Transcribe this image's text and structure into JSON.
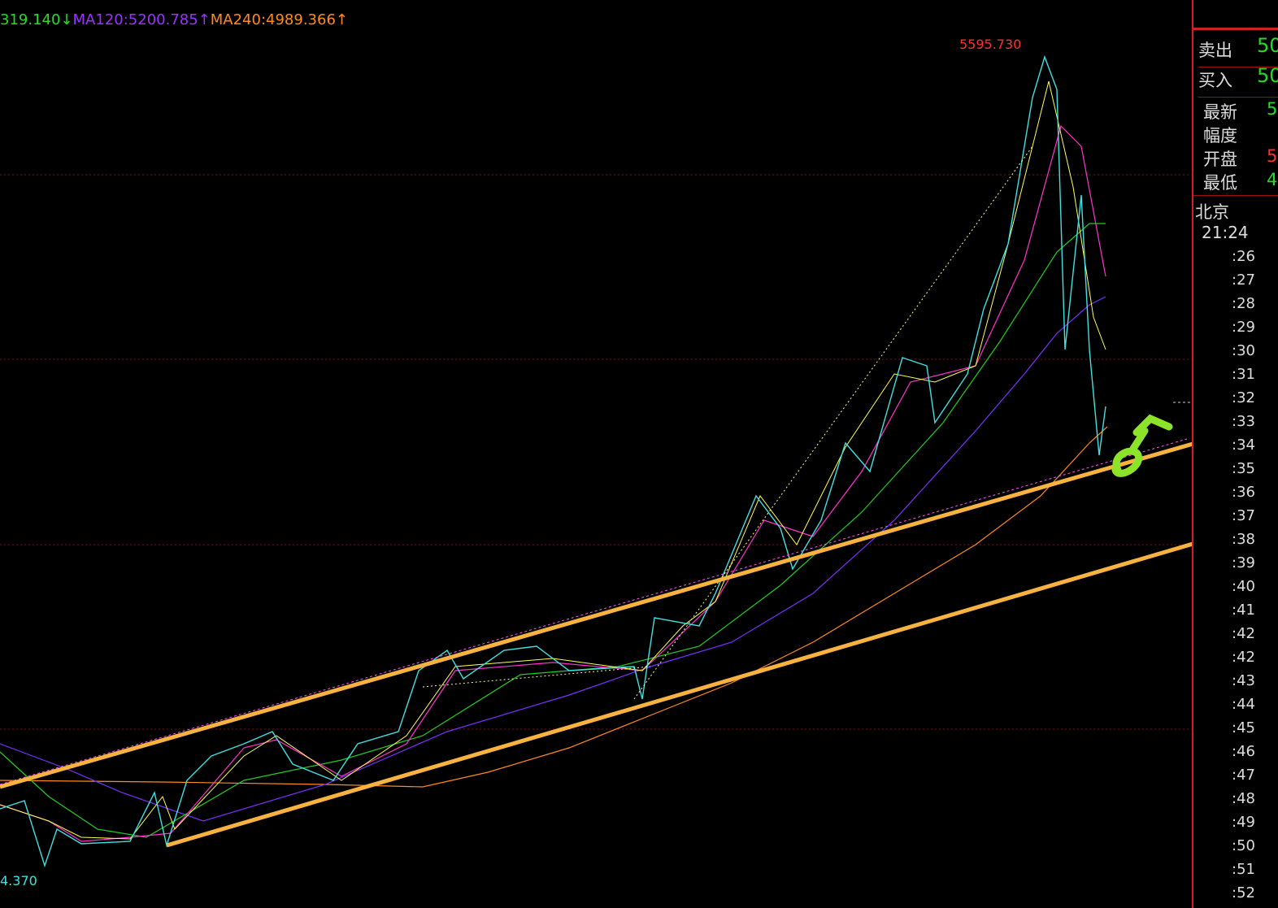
{
  "header": {
    "ma_labels": [
      {
        "text": "319.140↓",
        "color": "#22dd22"
      },
      {
        "text": "MA120:5200.785↑",
        "color": "#9933ff"
      },
      {
        "text": "MA240:4989.366↑",
        "color": "#ff8a1e"
      }
    ]
  },
  "annotations": {
    "high": "5595.730",
    "low": "4.370"
  },
  "side_panel": {
    "quotes": [
      {
        "label": "卖出",
        "value": "50"
      },
      {
        "label": "买入",
        "value": "50"
      }
    ],
    "stats": [
      {
        "label": "最新",
        "value": "5"
      },
      {
        "label": "幅度",
        "value": ""
      },
      {
        "label": "开盘",
        "value": "5"
      },
      {
        "label": "最低",
        "value": "4"
      }
    ],
    "city": "北京",
    "time": "21:24",
    "ticks": [
      ":26",
      ":27",
      ":28",
      ":29",
      ":30",
      ":31",
      ":32",
      ":33",
      ":34",
      ":35",
      ":36",
      ":37",
      ":38",
      ":39",
      ":40",
      ":41",
      ":42",
      ":42",
      ":43",
      ":44",
      ":45",
      ":46",
      ":47",
      ":48",
      ":49",
      ":50",
      ":51",
      ":52"
    ]
  }
}
